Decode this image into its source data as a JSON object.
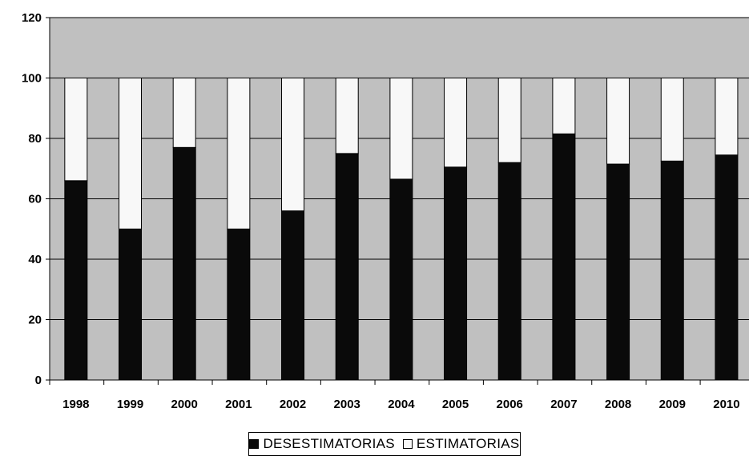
{
  "chart_data": {
    "type": "bar",
    "stacked": true,
    "categories": [
      "1998",
      "1999",
      "2000",
      "2001",
      "2002",
      "2003",
      "2004",
      "2005",
      "2006",
      "2007",
      "2008",
      "2009",
      "2010"
    ],
    "series": [
      {
        "name": "DESESTIMATORIAS",
        "color": "#0a0a0a",
        "values": [
          66,
          50,
          77,
          50,
          56,
          75,
          66.5,
          70.5,
          72,
          81.5,
          71.5,
          72.5,
          74.5
        ]
      },
      {
        "name": "ESTIMATORIAS",
        "color": "#f8f8f8",
        "values": [
          34,
          50,
          23,
          50,
          44,
          25,
          33.5,
          29.5,
          28,
          18.5,
          28.5,
          27.5,
          25.5
        ]
      }
    ],
    "ylim": [
      0,
      120
    ],
    "yticks": [
      0,
      20,
      40,
      60,
      80,
      100,
      120
    ],
    "grid": true,
    "legend": "bottom",
    "plot_background": "#c0c0c0"
  }
}
